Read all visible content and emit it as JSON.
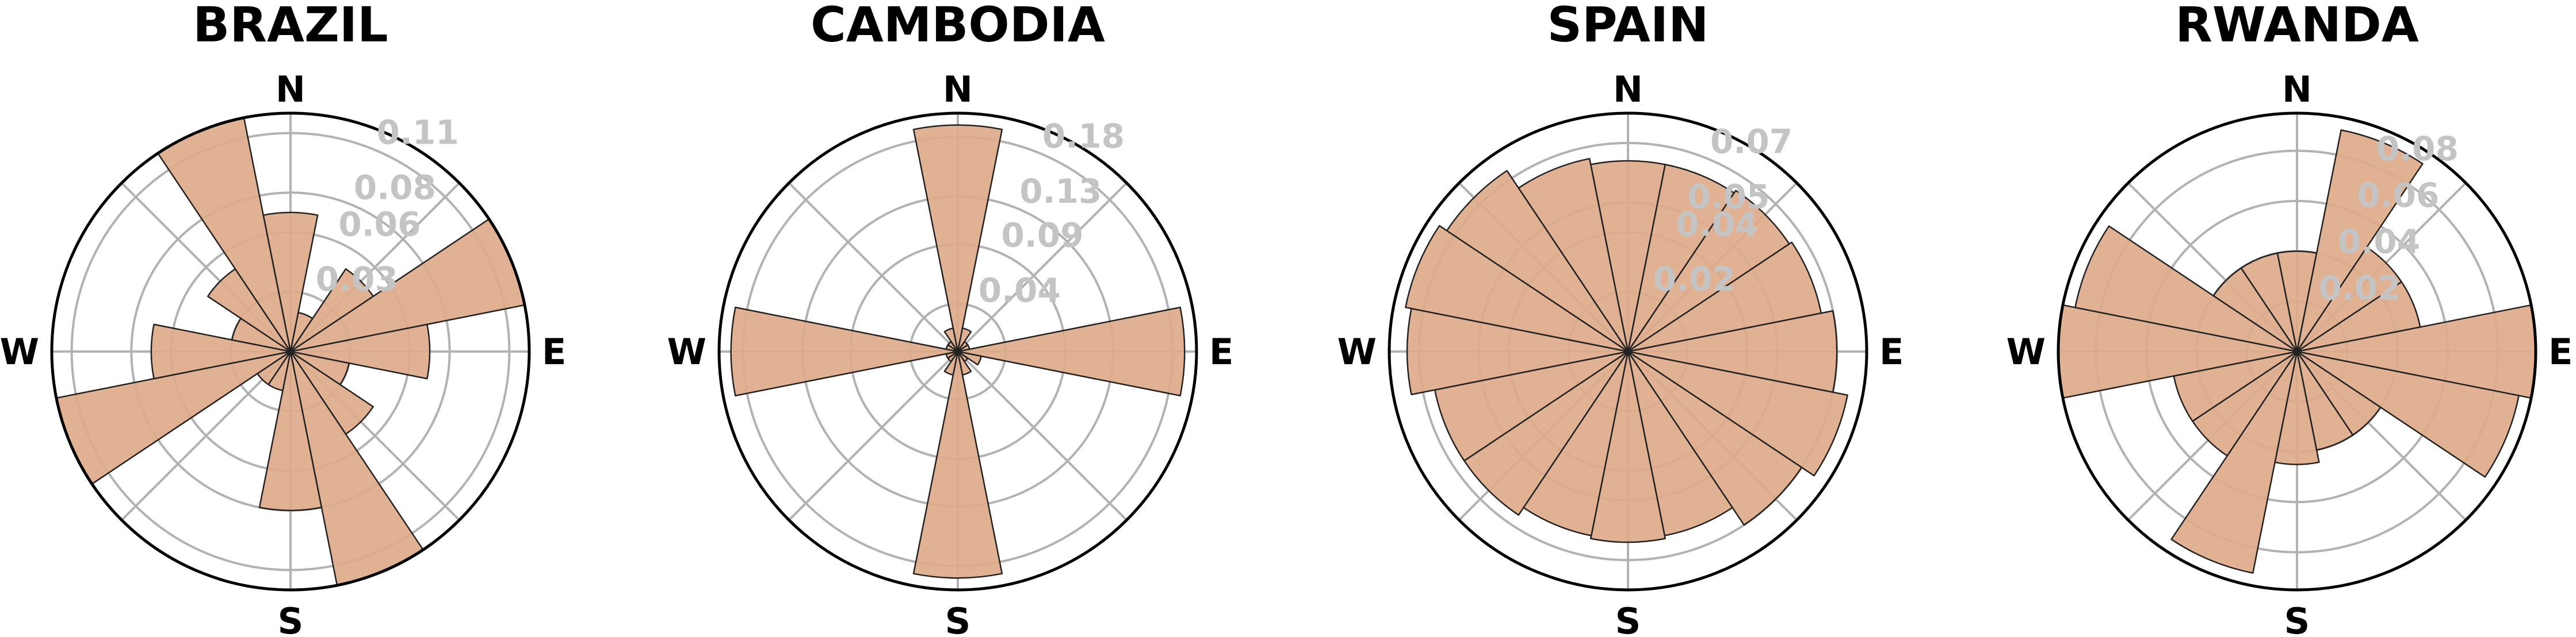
{
  "figure": {
    "title": ""
  },
  "compass_labels": [
    "N",
    "E",
    "S",
    "W"
  ],
  "chart_data": [
    {
      "type": "polar-bar",
      "title": "BRAZIL",
      "directions": [
        "N",
        "NNE",
        "NE",
        "ENE",
        "E",
        "ESE",
        "SE",
        "SSE",
        "S",
        "SSW",
        "SW",
        "WSW",
        "W",
        "WNW",
        "NW",
        "NNW"
      ],
      "values": [
        0.07,
        0.02,
        0.05,
        0.12,
        0.07,
        0.03,
        0.05,
        0.12,
        0.08,
        0.02,
        0.02,
        0.12,
        0.07,
        0.03,
        0.05,
        0.12
      ],
      "rmax": 0.12,
      "rticks": [
        0.03,
        0.06,
        0.08,
        0.11
      ],
      "rtick_labels": [
        "0.03",
        "0.06",
        "0.08",
        "0.11"
      ],
      "color": "#deaa8a"
    },
    {
      "type": "polar-bar",
      "title": "CAMBODIA",
      "directions": [
        "N",
        "NNE",
        "NE",
        "ENE",
        "E",
        "ESE",
        "SE",
        "SSE",
        "S",
        "SSW",
        "SW",
        "WSW",
        "W",
        "WNW",
        "NW",
        "NNW"
      ],
      "values": [
        0.19,
        0.02,
        0.01,
        0.01,
        0.19,
        0.02,
        0.01,
        0.02,
        0.19,
        0.02,
        0.01,
        0.01,
        0.19,
        0.01,
        0.01,
        0.02
      ],
      "rmax": 0.2,
      "rticks": [
        0.04,
        0.09,
        0.13,
        0.18
      ],
      "rtick_labels": [
        "0.04",
        "0.09",
        "0.13",
        "0.18"
      ],
      "color": "#deaa8a"
    },
    {
      "type": "polar-bar",
      "title": "SPAIN",
      "directions": [
        "N",
        "NNE",
        "NE",
        "ENE",
        "E",
        "ESE",
        "SE",
        "SSE",
        "S",
        "SSW",
        "SW",
        "WSW",
        "W",
        "WNW",
        "NW",
        "NNW"
      ],
      "values": [
        0.064,
        0.064,
        0.065,
        0.066,
        0.07,
        0.075,
        0.07,
        0.063,
        0.064,
        0.063,
        0.066,
        0.066,
        0.074,
        0.076,
        0.073,
        0.066
      ],
      "rmax": 0.08,
      "rticks": [
        0.02,
        0.04,
        0.05,
        0.07
      ],
      "rtick_labels": [
        "0.02",
        "0.04",
        "0.05",
        "0.07"
      ],
      "color": "#deaa8a"
    },
    {
      "type": "polar-bar",
      "title": "RWANDA",
      "directions": [
        "N",
        "NNE",
        "NE",
        "ENE",
        "E",
        "ESE",
        "SE",
        "SSE",
        "S",
        "SSW",
        "SW",
        "WSW",
        "W",
        "WNW",
        "NW",
        "NNW"
      ],
      "values": [
        0.04,
        0.09,
        0.05,
        0.05,
        0.095,
        0.09,
        0.04,
        0.04,
        0.045,
        0.09,
        0.05,
        0.05,
        0.095,
        0.09,
        0.04,
        0.04
      ],
      "rmax": 0.095,
      "rticks": [
        0.02,
        0.04,
        0.06,
        0.08
      ],
      "rtick_labels": [
        "0.02",
        "0.04",
        "0.06",
        "0.08"
      ],
      "color": "#deaa8a"
    }
  ]
}
